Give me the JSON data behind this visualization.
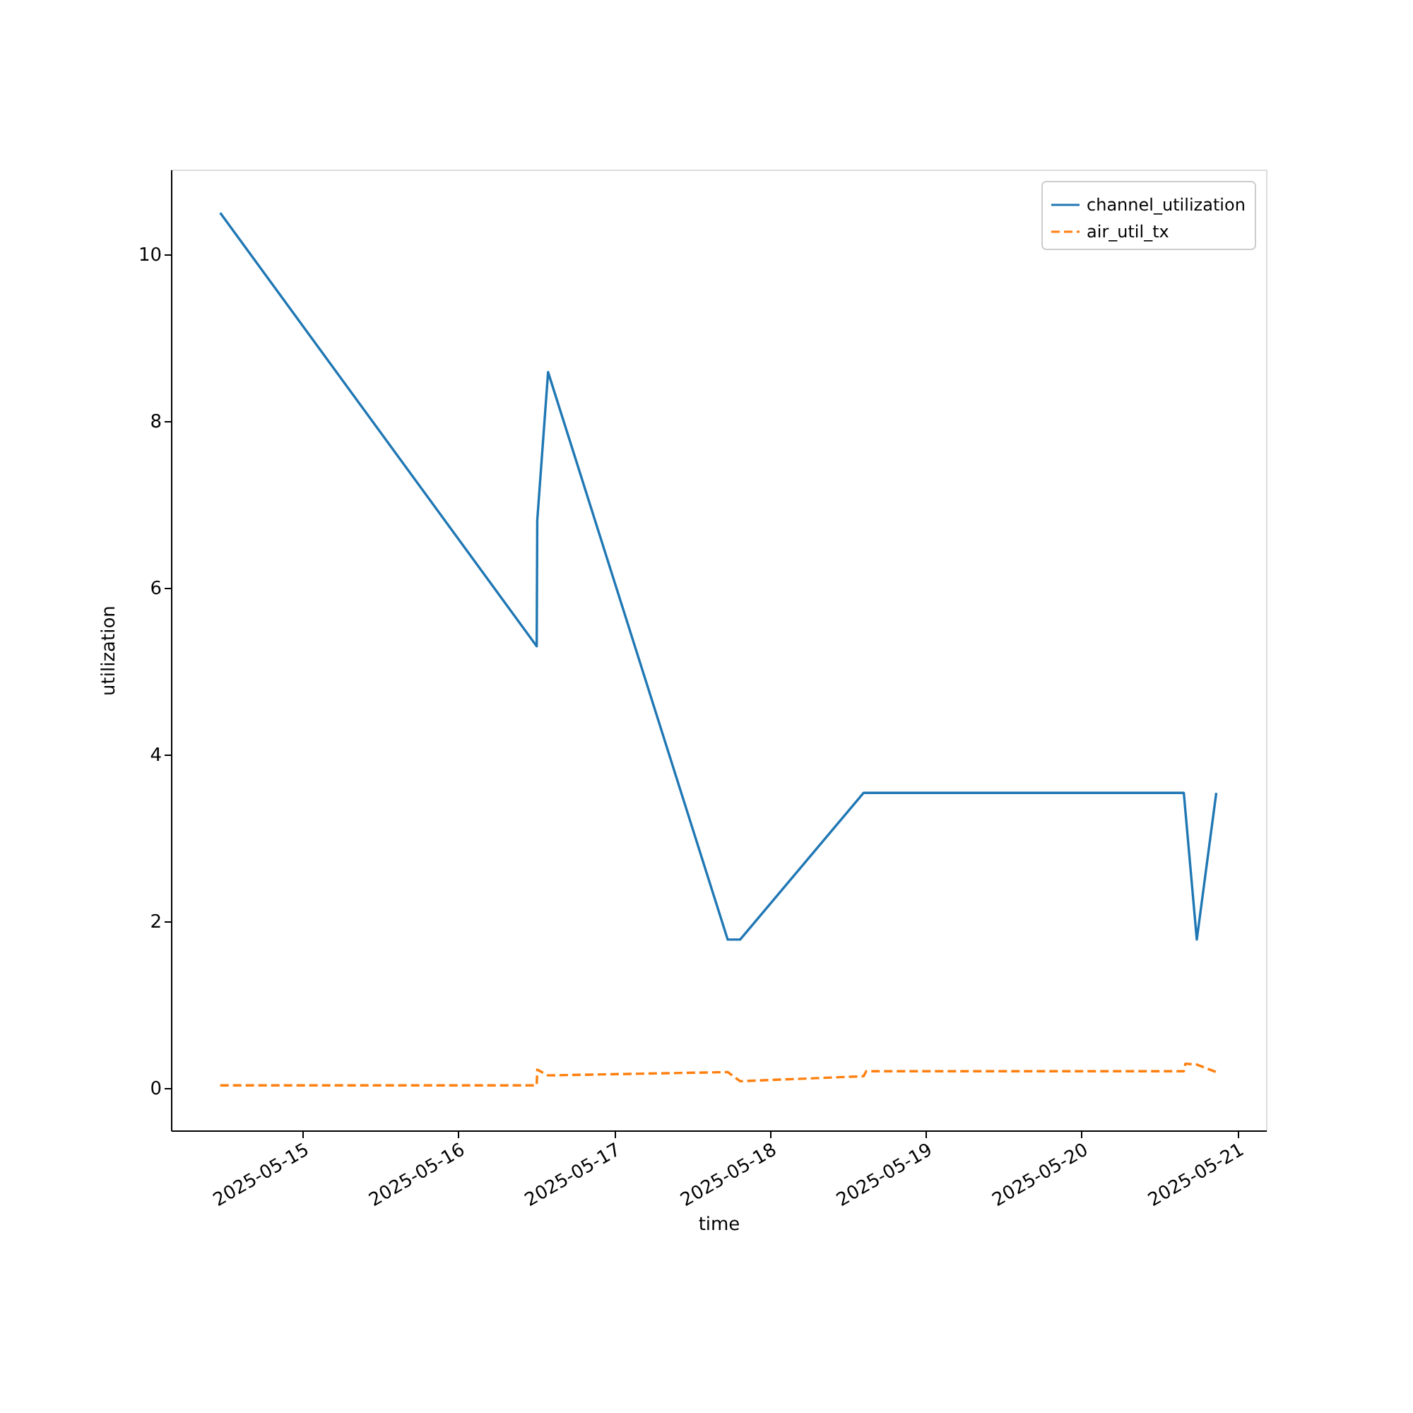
{
  "chart_data": {
    "type": "line",
    "xlabel": "time",
    "ylabel": "utilization",
    "xlim": [
      "2025-05-14T03:45",
      "2025-05-21T04:25"
    ],
    "xticks": [
      "2025-05-15",
      "2025-05-16",
      "2025-05-17",
      "2025-05-18",
      "2025-05-19",
      "2025-05-20",
      "2025-05-21"
    ],
    "ylim": [
      -0.51,
      11.02
    ],
    "yticks": [
      0,
      2,
      4,
      6,
      8,
      10
    ],
    "grid": false,
    "legend": "top right",
    "marker": "none",
    "series": [
      {
        "name": "channel_utilization",
        "color": "#1f77b4",
        "line_style": "solid",
        "x": [
          "2025-05-14T11:20",
          "2025-05-16T12:05",
          "2025-05-16T12:10",
          "2025-05-16T13:50",
          "2025-05-17T17:30",
          "2025-05-17T19:25",
          "2025-05-18T14:25",
          "2025-05-20T15:45",
          "2025-05-20T17:45",
          "2025-05-20T20:45"
        ],
        "values": [
          10.5,
          5.3,
          6.81,
          8.59,
          1.78,
          1.78,
          3.54,
          3.54,
          1.78,
          3.54
        ]
      },
      {
        "name": "air_util_tx",
        "color": "#ff7f0e",
        "line_style": "dashed",
        "x": [
          "2025-05-14T11:20",
          "2025-05-16T12:05",
          "2025-05-16T12:10",
          "2025-05-16T13:50",
          "2025-05-17T17:30",
          "2025-05-17T19:25",
          "2025-05-18T14:25",
          "2025-05-18T14:50",
          "2025-05-20T15:45",
          "2025-05-20T16:00",
          "2025-05-20T17:45",
          "2025-05-20T20:45"
        ],
        "values": [
          0.03,
          0.03,
          0.22,
          0.15,
          0.19,
          0.08,
          0.14,
          0.2,
          0.2,
          0.29,
          0.28,
          0.19
        ]
      }
    ]
  }
}
